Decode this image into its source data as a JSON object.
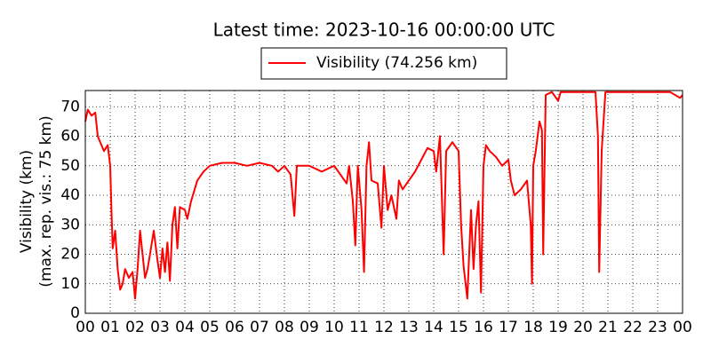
{
  "chart_data": {
    "type": "line",
    "title": "Latest time: 2023-10-16 00:00:00 UTC",
    "y_label": [
      "Visibility (km)",
      "(max. rep. vis.: 75 km)"
    ],
    "grid": true,
    "legend_position": "top",
    "x": [
      0.0,
      0.1,
      0.25,
      0.4,
      0.5,
      0.6,
      0.75,
      0.9,
      1.0,
      1.05,
      1.1,
      1.2,
      1.3,
      1.4,
      1.5,
      1.6,
      1.75,
      1.9,
      2.0,
      2.1,
      2.2,
      2.3,
      2.4,
      2.5,
      2.6,
      2.75,
      2.9,
      3.0,
      3.1,
      3.2,
      3.3,
      3.4,
      3.5,
      3.6,
      3.7,
      3.8,
      4.0,
      4.1,
      4.25,
      4.5,
      4.75,
      5.0,
      5.5,
      6.0,
      6.5,
      7.0,
      7.5,
      7.75,
      8.0,
      8.25,
      8.4,
      8.5,
      9.0,
      9.5,
      10.0,
      10.25,
      10.5,
      10.6,
      10.75,
      10.85,
      10.95,
      11.1,
      11.2,
      11.3,
      11.4,
      11.5,
      11.75,
      11.9,
      12.0,
      12.15,
      12.3,
      12.5,
      12.6,
      12.75,
      13.0,
      13.25,
      13.5,
      13.75,
      14.0,
      14.1,
      14.25,
      14.4,
      14.5,
      14.75,
      15.0,
      15.1,
      15.2,
      15.35,
      15.5,
      15.6,
      15.7,
      15.8,
      15.9,
      16.0,
      16.1,
      16.25,
      16.5,
      16.75,
      17.0,
      17.1,
      17.25,
      17.5,
      17.75,
      17.9,
      17.95,
      18.0,
      18.1,
      18.25,
      18.35,
      18.4,
      18.5,
      18.75,
      19.0,
      19.1,
      19.5,
      20.0,
      20.5,
      20.6,
      20.65,
      20.75,
      20.9,
      21.5,
      22.0,
      22.5,
      23.0,
      23.5,
      23.9,
      24.0
    ],
    "series": [
      {
        "name": "Visibility (74.256 km)",
        "color": "#ff0000",
        "values": [
          65,
          69,
          67,
          68,
          60,
          58,
          55,
          57,
          50,
          35,
          22,
          28,
          15,
          8,
          10,
          15,
          12,
          14,
          5,
          15,
          28,
          20,
          12,
          15,
          20,
          28,
          18,
          12,
          22,
          14,
          24,
          11,
          30,
          36,
          22,
          36,
          35,
          32,
          38,
          45,
          48,
          50,
          51,
          51,
          50,
          51,
          50,
          48,
          50,
          47,
          33,
          50,
          50,
          48,
          50,
          47,
          44,
          50,
          38,
          23,
          50,
          35,
          14,
          50,
          58,
          45,
          44,
          29,
          50,
          35,
          40,
          32,
          45,
          42,
          45,
          48,
          52,
          56,
          55,
          48,
          60,
          20,
          55,
          58,
          55,
          30,
          16,
          5,
          35,
          15,
          30,
          38,
          7,
          50,
          57,
          55,
          53,
          50,
          52,
          45,
          40,
          42,
          45,
          30,
          10,
          50,
          55,
          65,
          62,
          20,
          74,
          75,
          72,
          75,
          75,
          75,
          75,
          60,
          14,
          55,
          75,
          75,
          75,
          75,
          75,
          75,
          73,
          74
        ]
      }
    ],
    "xlim": [
      0,
      24
    ],
    "ylim": [
      0,
      75.5
    ],
    "xticks": [
      {
        "value": 0,
        "label": "00"
      },
      {
        "value": 1,
        "label": "01"
      },
      {
        "value": 2,
        "label": "02"
      },
      {
        "value": 3,
        "label": "03"
      },
      {
        "value": 4,
        "label": "04"
      },
      {
        "value": 5,
        "label": "05"
      },
      {
        "value": 6,
        "label": "06"
      },
      {
        "value": 7,
        "label": "07"
      },
      {
        "value": 8,
        "label": "08"
      },
      {
        "value": 9,
        "label": "09"
      },
      {
        "value": 10,
        "label": "10"
      },
      {
        "value": 11,
        "label": "11"
      },
      {
        "value": 12,
        "label": "12"
      },
      {
        "value": 13,
        "label": "13"
      },
      {
        "value": 14,
        "label": "14"
      },
      {
        "value": 15,
        "label": "15"
      },
      {
        "value": 16,
        "label": "16"
      },
      {
        "value": 17,
        "label": "17"
      },
      {
        "value": 18,
        "label": "18"
      },
      {
        "value": 19,
        "label": "19"
      },
      {
        "value": 20,
        "label": "20"
      },
      {
        "value": 21,
        "label": "21"
      },
      {
        "value": 22,
        "label": "22"
      },
      {
        "value": 23,
        "label": "23"
      },
      {
        "value": 24,
        "label": "00"
      }
    ],
    "yticks": [
      0,
      10,
      20,
      30,
      40,
      50,
      60,
      70
    ]
  }
}
